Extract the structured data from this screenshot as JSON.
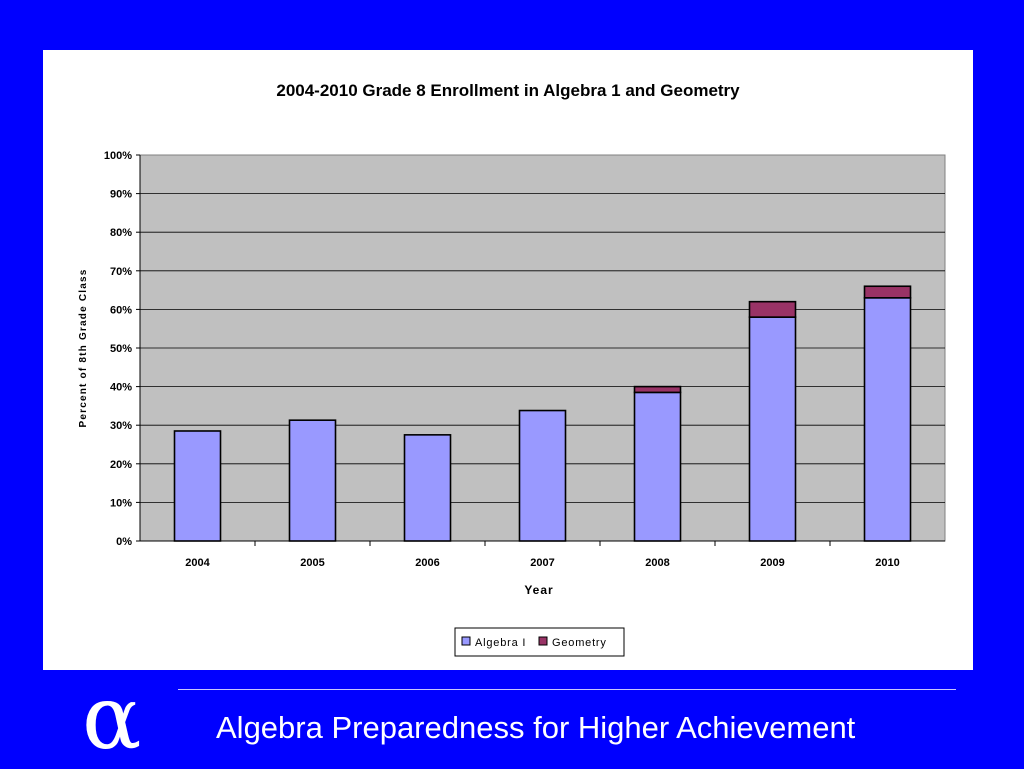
{
  "slide": {
    "logo_symbol": "α",
    "footer_title": "Algebra Preparedness for Higher Achievement"
  },
  "colors": {
    "background": "#0000ff",
    "panel": "#ffffff",
    "plot_area": "#c0c0c0",
    "algebra": "#9999ff",
    "geometry": "#993366"
  },
  "chart_data": {
    "type": "bar",
    "stacked": true,
    "title": "2004-2010 Grade 8 Enrollment in Algebra 1 and Geometry",
    "xlabel": "Year",
    "ylabel": "Percent of 8th Grade Class",
    "categories": [
      "2004",
      "2005",
      "2006",
      "2007",
      "2008",
      "2009",
      "2010"
    ],
    "series": [
      {
        "name": "Algebra I",
        "color": "#9999ff",
        "values": [
          28.5,
          31.3,
          27.5,
          33.8,
          38.5,
          58.0,
          63.0
        ]
      },
      {
        "name": "Geometry",
        "color": "#993366",
        "values": [
          0,
          0,
          0,
          0,
          1.5,
          4.0,
          3.0
        ]
      }
    ],
    "ylim": [
      0,
      100
    ],
    "yticks": [
      "0%",
      "10%",
      "20%",
      "30%",
      "40%",
      "50%",
      "60%",
      "70%",
      "80%",
      "90%",
      "100%"
    ],
    "grid": true,
    "legend_position": "bottom"
  }
}
